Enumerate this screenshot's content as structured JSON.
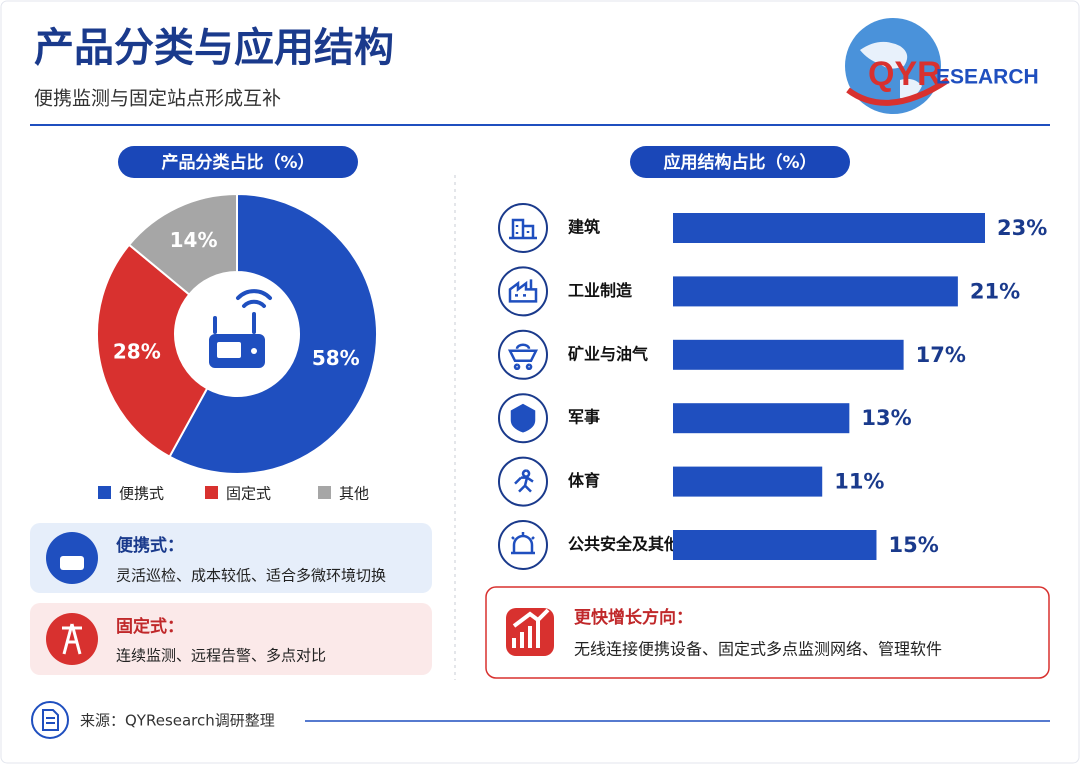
{
  "header": {
    "title": "产品分类与应用结构",
    "subtitle": "便携监测与固定站点形成互补"
  },
  "logo": {
    "parts": [
      "QYR",
      "ESEARCH"
    ]
  },
  "chart_data": [
    {
      "type": "pie",
      "title": "产品分类占比（%）",
      "donut": true,
      "categories": [
        "便携式",
        "固定式",
        "其他"
      ],
      "values": [
        58,
        28,
        14
      ],
      "value_labels": [
        "58%",
        "28%",
        "14%"
      ],
      "colors": [
        "#1f4fbf",
        "#d8312f",
        "#a6a6a6"
      ],
      "legend": "bottom"
    },
    {
      "type": "bar",
      "orientation": "horizontal",
      "title": "应用结构占比（%）",
      "categories": [
        "建筑",
        "工业制造",
        "矿业与油气",
        "军事",
        "体育",
        "公共安全及其他"
      ],
      "values": [
        23,
        21,
        17,
        13,
        11,
        15
      ],
      "value_labels": [
        "23%",
        "21%",
        "17%",
        "13%",
        "11%",
        "15%"
      ],
      "color": "#1f4fbf"
    }
  ],
  "notes": [
    {
      "title": "便携式：",
      "text": "灵活巡检、成本较低、适合多微环境切换"
    },
    {
      "title": "固定式：",
      "text": "连续监测、远程告警、多点对比"
    }
  ],
  "callout": {
    "title": "更快增长方向：",
    "text": "无线连接便携设备、固定式多点监测网络、管理软件"
  },
  "footer": {
    "source": "来源：QYResearch调研整理"
  }
}
